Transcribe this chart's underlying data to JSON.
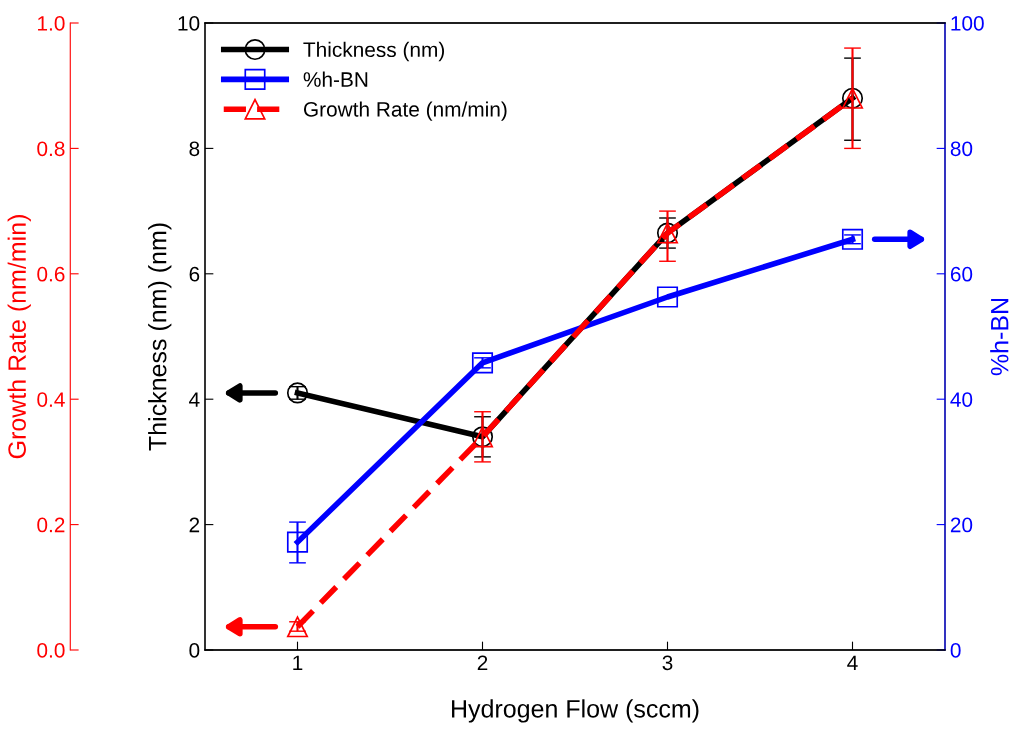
{
  "chart_data": {
    "type": "line",
    "xlabel": "Hydrogen Flow (sccm)",
    "ylabel": "Thickness (nm) (nm)",
    "y2label": "%h-BN",
    "y3label": "Growth Rate (nm/min)",
    "x": [
      1,
      2,
      3,
      4
    ],
    "xlim": [
      0.5,
      4.5
    ],
    "xticks": [
      1,
      2,
      3,
      4
    ],
    "ylim": [
      0,
      10
    ],
    "yticks": [
      0,
      2,
      4,
      6,
      8,
      10
    ],
    "y2lim": [
      0,
      100
    ],
    "y2ticks": [
      0,
      20,
      40,
      60,
      80,
      100
    ],
    "y3lim": [
      0,
      1.0
    ],
    "y3ticks": [
      {
        "value": 0,
        "label": "0.0"
      },
      0.2,
      0.4,
      0.6,
      0.8,
      {
        "value": 1.0,
        "label": "1.0"
      }
    ],
    "legend": "top left",
    "grid": false,
    "series": [
      {
        "name": "Thickness (nm)",
        "color": "#000000",
        "marker": "circle",
        "line_style": "solid",
        "values": [
          4.1,
          3.4,
          6.65,
          8.8
        ],
        "errors": [
          [
            4.0,
            4.2
          ],
          [
            3.08,
            3.72
          ],
          [
            6.41,
            6.89
          ],
          [
            8.13,
            9.44
          ]
        ]
      },
      {
        "name": "%h-BN",
        "color": "#0000ff",
        "marker": "square",
        "line_style": "solid",
        "axis": "y2",
        "values": [
          17.2,
          45.8,
          56.3,
          65.5
        ],
        "errors": [
          [
            13.9,
            20.4
          ],
          [
            45.0,
            46.6
          ],
          null,
          [
            64.8,
            66.2
          ]
        ]
      },
      {
        "name": "Growth Rate (nm/min)",
        "color": "#ff0000",
        "marker": "triangle",
        "line_style": "dashed",
        "axis": "y3",
        "values": [
          0.037,
          0.34,
          0.665,
          0.88
        ],
        "errors": [
          [
            0.03,
            0.045
          ],
          [
            0.3,
            0.38
          ],
          [
            0.62,
            0.7
          ],
          [
            0.8,
            0.96
          ]
        ]
      }
    ]
  }
}
